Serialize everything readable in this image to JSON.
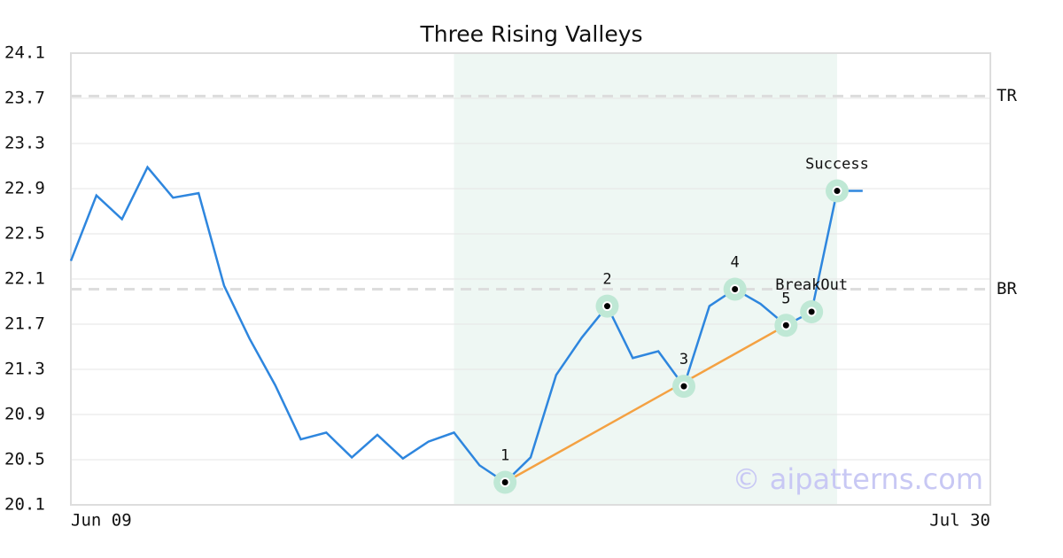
{
  "chart_data": {
    "type": "line",
    "title": "Three Rising Valleys",
    "categories": [
      "Jun 09",
      null,
      null,
      null,
      null,
      null,
      null,
      null,
      null,
      null,
      null,
      null,
      null,
      null,
      null,
      null,
      null,
      null,
      null,
      null,
      null,
      null,
      null,
      null,
      null,
      null,
      null,
      null,
      null,
      null,
      null,
      null,
      null,
      null,
      null,
      null,
      "Jul 30"
    ],
    "values": [
      22.26,
      22.84,
      22.63,
      23.09,
      22.82,
      22.86,
      22.04,
      21.57,
      21.16,
      20.68,
      20.74,
      20.52,
      20.72,
      20.51,
      20.66,
      20.74,
      20.45,
      20.3,
      20.52,
      21.25,
      21.58,
      21.86,
      21.4,
      21.46,
      21.15,
      21.86,
      22.01,
      21.88,
      21.69,
      21.81,
      22.88,
      22.88,
      null,
      null,
      null,
      null,
      null
    ],
    "color": "#2e86de",
    "ylim": [
      20.1,
      24.1
    ],
    "yticks": [
      20.1,
      20.5,
      20.9,
      21.3,
      21.7,
      22.1,
      22.5,
      22.9,
      23.3,
      23.7,
      24.1
    ],
    "grid": true,
    "reference_lines": [
      {
        "label": "TR",
        "value": 23.72
      },
      {
        "label": "BR",
        "value": 22.01
      }
    ],
    "shaded_range": {
      "from": 15,
      "to": 30,
      "color": "#eef7f3"
    },
    "trendline": {
      "from": 17,
      "to": 28,
      "color": "#f4a142"
    },
    "annotations": [
      {
        "index": 17,
        "label": "1"
      },
      {
        "index": 21,
        "label": "2"
      },
      {
        "index": 24,
        "label": "3"
      },
      {
        "index": 26,
        "label": "4"
      },
      {
        "index": 28,
        "label": "5"
      },
      {
        "index": 29,
        "label": "BreakOut"
      },
      {
        "index": 30,
        "label": "Success"
      }
    ],
    "watermark": "© aipatterns.com"
  }
}
